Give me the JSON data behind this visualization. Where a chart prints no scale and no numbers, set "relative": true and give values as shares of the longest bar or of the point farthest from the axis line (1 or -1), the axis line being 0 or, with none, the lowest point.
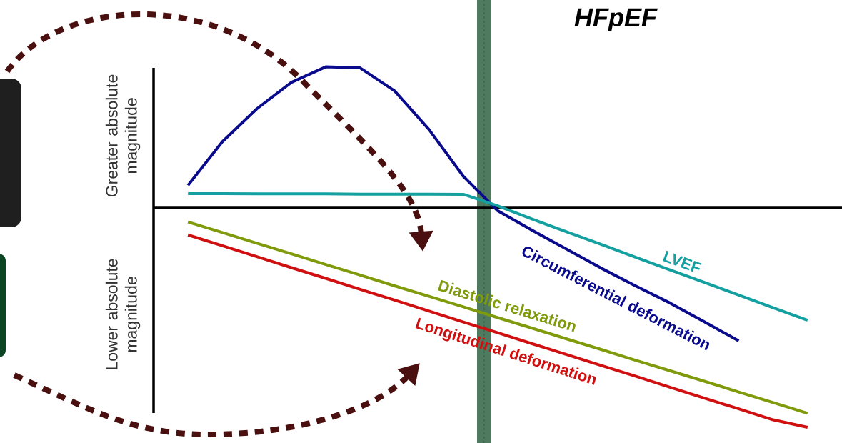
{
  "chart_data": {
    "type": "line",
    "title": "HFpEF",
    "relative": true,
    "marker": "none",
    "line_style": "solid",
    "annotations": [
      "Greater absolute magnitude",
      "Lower absolute magnitude"
    ],
    "categories": [
      null,
      null,
      null,
      null,
      null,
      null,
      null,
      null,
      null,
      null,
      null,
      null,
      null,
      null,
      null,
      null,
      null,
      null,
      null,
      null
    ],
    "series": [
      {
        "name": "Circumferential deformation",
        "color": "#0a0a8c",
        "values": [
          null,
          0.103,
          0.302,
          0.452,
          0.572,
          0.643,
          0.638,
          0.534,
          0.358,
          0.144,
          -0.013,
          -0.102,
          -0.188,
          -0.274,
          -0.355,
          -0.433,
          -0.519,
          -0.606,
          null,
          null
        ]
      },
      {
        "name": "LVEF",
        "color": "#14a0a0",
        "values": [
          null,
          0.065,
          0.065,
          0.064,
          0.064,
          0.064,
          0.063,
          0.063,
          0.063,
          0.062,
          0.009,
          -0.051,
          -0.109,
          -0.166,
          -0.224,
          -0.282,
          -0.339,
          -0.397,
          -0.455,
          -0.512
        ]
      },
      {
        "name": "Diastolic relaxation",
        "color": "#7f9a0a",
        "values": [
          null,
          -0.064,
          -0.112,
          -0.161,
          -0.209,
          -0.258,
          -0.306,
          -0.355,
          -0.403,
          -0.451,
          -0.5,
          -0.548,
          -0.597,
          -0.645,
          -0.694,
          -0.742,
          -0.79,
          -0.839,
          -0.887,
          -0.936
        ]
      },
      {
        "name": "Longitudinal deformation",
        "color": "#d01010",
        "values": [
          null,
          -0.123,
          -0.172,
          -0.222,
          -0.272,
          -0.321,
          -0.371,
          -0.42,
          -0.47,
          -0.52,
          -0.569,
          -0.619,
          -0.668,
          -0.718,
          -0.767,
          -0.817,
          -0.867,
          -0.916,
          -0.966,
          -1.0
        ]
      }
    ]
  }
}
